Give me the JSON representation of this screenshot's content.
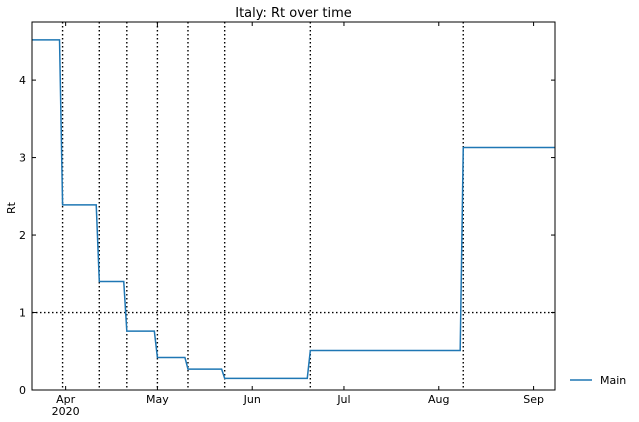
{
  "chart_data": {
    "type": "line",
    "title": "Italy: Rt over time",
    "xlabel": "",
    "ylabel": "Rt",
    "xlim": [
      "2020-03-21",
      "2020-09-08"
    ],
    "ylim": [
      0,
      4.75
    ],
    "x_ticks": [
      {
        "date": "2020-04-01",
        "label": "Apr",
        "sublabel": "2020"
      },
      {
        "date": "2020-05-01",
        "label": "May",
        "sublabel": ""
      },
      {
        "date": "2020-06-01",
        "label": "Jun",
        "sublabel": ""
      },
      {
        "date": "2020-07-01",
        "label": "Jul",
        "sublabel": ""
      },
      {
        "date": "2020-08-01",
        "label": "Aug",
        "sublabel": ""
      },
      {
        "date": "2020-09-01",
        "label": "Sep",
        "sublabel": ""
      }
    ],
    "y_ticks": [
      0,
      1,
      2,
      3,
      4
    ],
    "reference_lines": {
      "horizontal": [
        1
      ],
      "vertical_dates": [
        "2020-03-31",
        "2020-04-12",
        "2020-04-21",
        "2020-05-01",
        "2020-05-11",
        "2020-05-23",
        "2020-06-20",
        "2020-08-09"
      ]
    },
    "series": [
      {
        "name": "Main",
        "color": "#1f77b4",
        "points": [
          [
            "2020-03-21",
            4.52
          ],
          [
            "2020-03-30",
            4.52
          ],
          [
            "2020-03-31",
            2.39
          ],
          [
            "2020-04-11",
            2.39
          ],
          [
            "2020-04-12",
            1.4
          ],
          [
            "2020-04-20",
            1.4
          ],
          [
            "2020-04-21",
            0.76
          ],
          [
            "2020-04-30",
            0.76
          ],
          [
            "2020-05-01",
            0.42
          ],
          [
            "2020-05-10",
            0.42
          ],
          [
            "2020-05-11",
            0.27
          ],
          [
            "2020-05-22",
            0.27
          ],
          [
            "2020-05-23",
            0.15
          ],
          [
            "2020-06-19",
            0.15
          ],
          [
            "2020-06-20",
            0.51
          ],
          [
            "2020-08-08",
            0.51
          ],
          [
            "2020-08-09",
            3.13
          ],
          [
            "2020-09-08",
            3.13
          ]
        ]
      }
    ],
    "legend": {
      "placement": "outside-right-bottom"
    },
    "grid": false
  }
}
